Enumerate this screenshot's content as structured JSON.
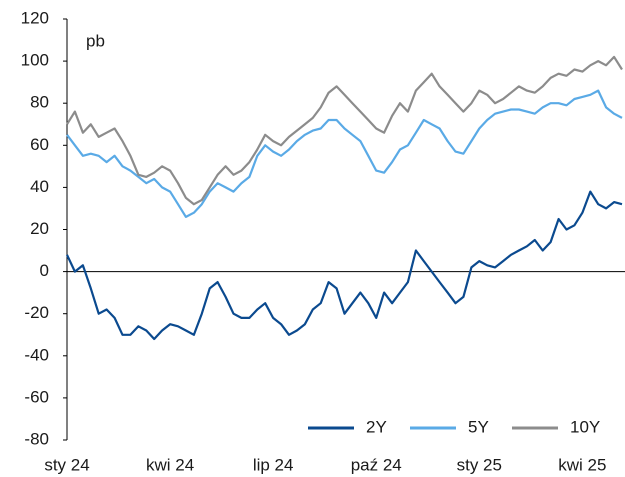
{
  "chart_data": {
    "type": "line",
    "y_label": "pb",
    "categories": [
      "sty 24",
      null,
      null,
      null,
      null,
      null,
      null,
      null,
      null,
      null,
      null,
      null,
      null,
      "kwi 24",
      null,
      null,
      null,
      null,
      null,
      null,
      null,
      null,
      null,
      null,
      null,
      null,
      "lip 24",
      null,
      null,
      null,
      null,
      null,
      null,
      null,
      null,
      null,
      null,
      null,
      null,
      "paź 24",
      null,
      null,
      null,
      null,
      null,
      null,
      null,
      null,
      null,
      null,
      null,
      null,
      "sty 25",
      null,
      null,
      null,
      null,
      null,
      null,
      null,
      null,
      null,
      null,
      null,
      null,
      "kwi 25",
      null,
      null,
      null,
      null,
      null
    ],
    "series": [
      {
        "name": "2Y",
        "color": "#0b4a8f",
        "values": [
          8,
          0,
          3,
          -8,
          -20,
          -18,
          -22,
          -30,
          -30,
          -26,
          -28,
          -32,
          -28,
          -25,
          -26,
          -28,
          -30,
          -20,
          -8,
          -5,
          -12,
          -20,
          -22,
          -22,
          -18,
          -15,
          -22,
          -25,
          -30,
          -28,
          -25,
          -18,
          -15,
          -5,
          -8,
          -20,
          -15,
          -10,
          -15,
          -22,
          -10,
          -15,
          -10,
          -5,
          10,
          5,
          0,
          -5,
          -10,
          -15,
          -12,
          2,
          5,
          3,
          2,
          5,
          8,
          10,
          12,
          15,
          10,
          14,
          25,
          20,
          22,
          28,
          38,
          32,
          30,
          33,
          32
        ]
      },
      {
        "name": "5Y",
        "color": "#5aaae6",
        "values": [
          65,
          60,
          55,
          56,
          55,
          52,
          55,
          50,
          48,
          45,
          42,
          44,
          40,
          38,
          32,
          26,
          28,
          32,
          38,
          42,
          40,
          38,
          42,
          45,
          55,
          60,
          57,
          55,
          58,
          62,
          65,
          67,
          68,
          72,
          72,
          68,
          65,
          62,
          55,
          48,
          47,
          52,
          58,
          60,
          66,
          72,
          70,
          68,
          62,
          57,
          56,
          62,
          68,
          72,
          75,
          76,
          77,
          77,
          76,
          75,
          78,
          80,
          80,
          79,
          82,
          83,
          84,
          86,
          78,
          75,
          73
        ]
      },
      {
        "name": "10Y",
        "color": "#8c8c8c",
        "values": [
          70,
          76,
          66,
          70,
          64,
          66,
          68,
          62,
          55,
          46,
          45,
          47,
          50,
          48,
          42,
          35,
          32,
          34,
          40,
          46,
          50,
          46,
          48,
          52,
          58,
          65,
          62,
          60,
          64,
          67,
          70,
          73,
          78,
          85,
          88,
          84,
          80,
          76,
          72,
          68,
          66,
          74,
          80,
          76,
          86,
          90,
          94,
          88,
          84,
          80,
          76,
          80,
          86,
          84,
          80,
          82,
          85,
          88,
          86,
          85,
          88,
          92,
          94,
          93,
          96,
          95,
          98,
          100,
          98,
          102,
          96
        ]
      }
    ],
    "ylim": [
      -80,
      120
    ],
    "yticks": [
      -80,
      -60,
      -40,
      -20,
      0,
      20,
      40,
      60,
      80,
      100,
      120
    ],
    "legend": "lower right"
  }
}
